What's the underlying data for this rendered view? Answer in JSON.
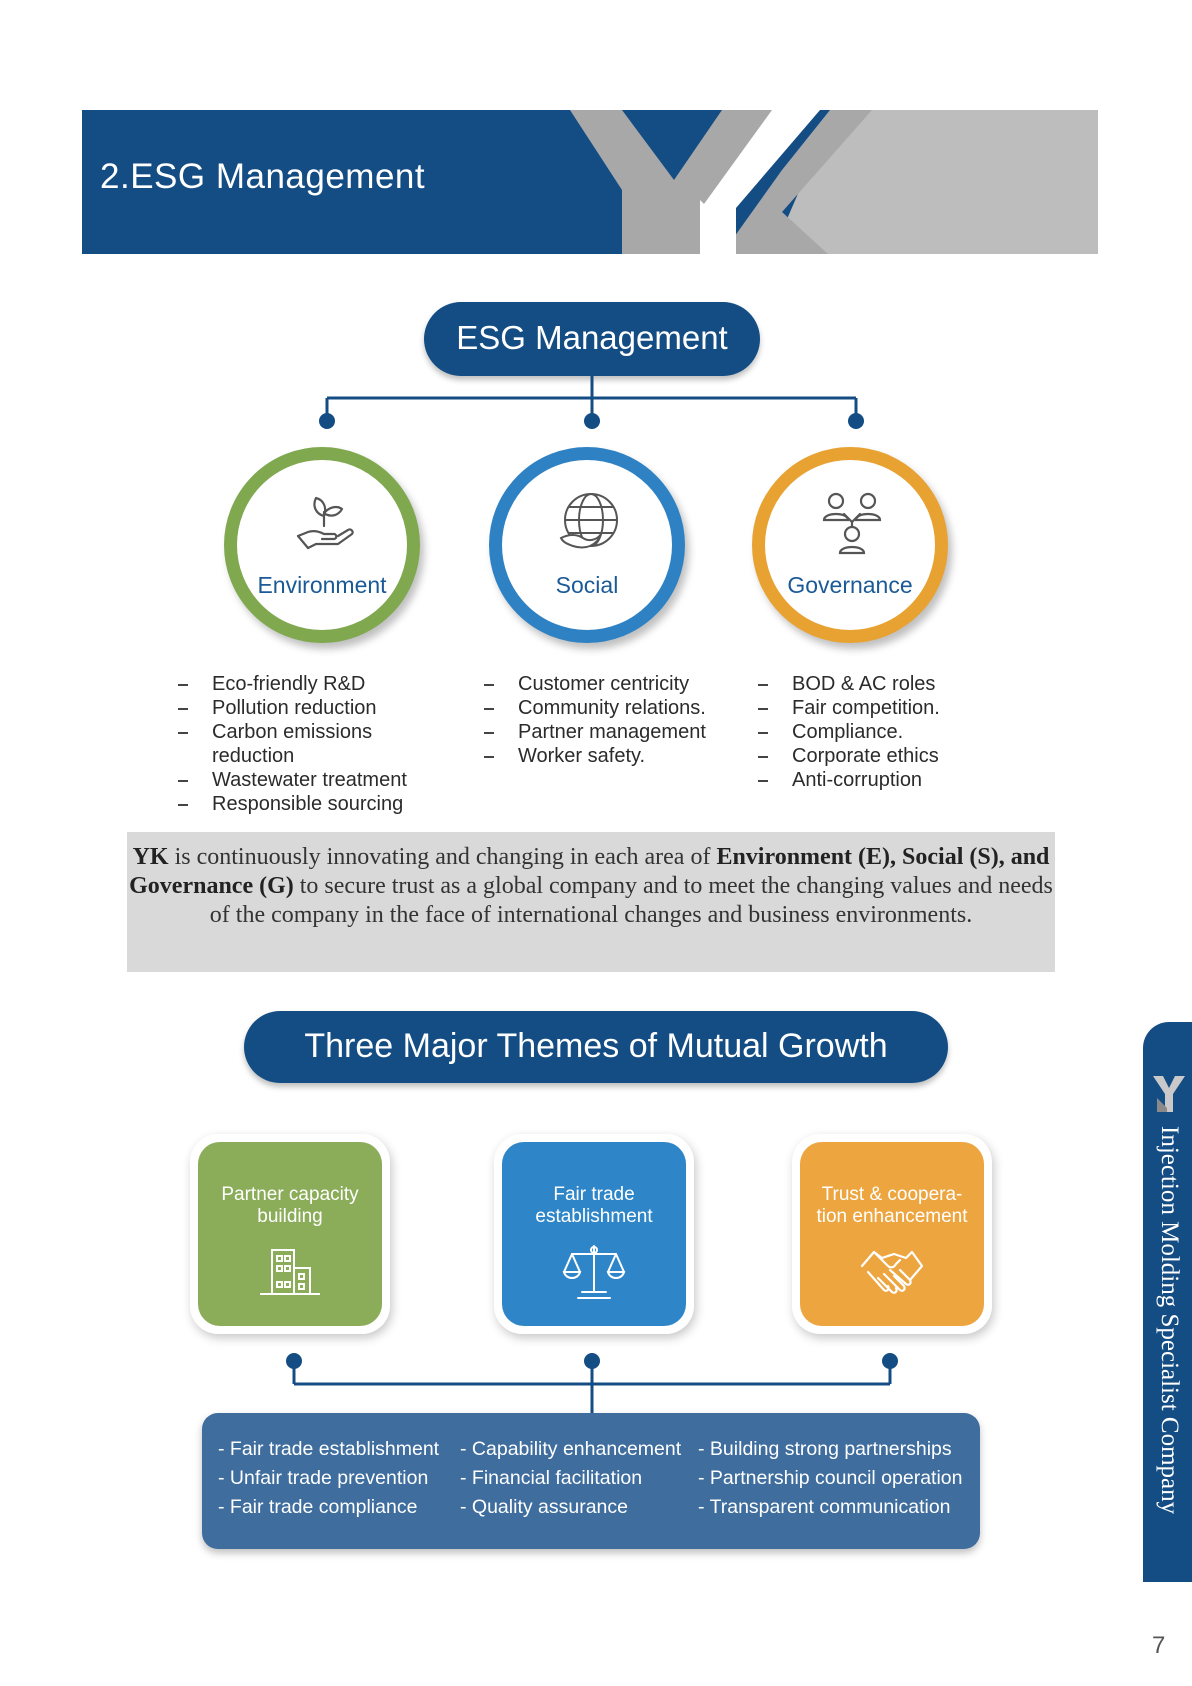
{
  "header": {
    "title": "2.ESG Management"
  },
  "esg": {
    "title": "ESG Management",
    "pillars": [
      {
        "label": "Environment",
        "icon": "hand-plant-icon",
        "color": "#7fa84f",
        "items": [
          "Eco-friendly R&D",
          "Pollution reduction",
          "Carbon emissions reduction",
          "Wastewater treatment",
          "Responsible sourcing"
        ]
      },
      {
        "label": "Social",
        "icon": "globe-dove-icon",
        "color": "#2e82c4",
        "items": [
          "Customer centricity",
          "Community relations.",
          "Partner management",
          "Worker safety."
        ]
      },
      {
        "label": "Governance",
        "icon": "people-network-icon",
        "color": "#e8a232",
        "items": [
          "BOD & AC roles",
          "Fair competition.",
          "Compliance.",
          "Corporate ethics",
          "Anti-corruption"
        ]
      }
    ]
  },
  "statement": {
    "lead": "YK",
    "p1": " is continuously innovating and changing in each area of ",
    "env": "Environment (E),",
    "soc": "Social (S), and Governance (G)",
    "p2": " to secure trust as a global company and to meet the changing values and needs of the company in the face of international changes and business environments."
  },
  "themes": {
    "title": "Three Major Themes of Mutual Growth",
    "tiles": [
      {
        "line1": "Partner capacity",
        "line2": "building",
        "icon": "building-icon",
        "color": "#8bac59"
      },
      {
        "line1": "Fair trade",
        "line2": "establishment",
        "icon": "scales-icon",
        "color": "#2e86c8"
      },
      {
        "line1": "Trust & coopera-",
        "line2": "tion enhancement",
        "icon": "handshake-icon",
        "color": "#eda53f"
      }
    ],
    "columns": [
      [
        "Fair trade establishment",
        "Unfair trade prevention",
        "Fair trade compliance"
      ],
      [
        "Capability enhancement",
        "Financial facilitation",
        "Quality assurance"
      ],
      [
        "Building strong partnerships",
        "Partnership council operation",
        "Transparent communication"
      ]
    ]
  },
  "sidebar": {
    "logo": "YK",
    "text": "Injection Molding Specialist Company"
  },
  "page_number": "7",
  "colors": {
    "navy": "#144d84",
    "green": "#7fa84f",
    "blue": "#2e82c4",
    "orange": "#e8a232",
    "gray_box": "#d9d9d9"
  }
}
